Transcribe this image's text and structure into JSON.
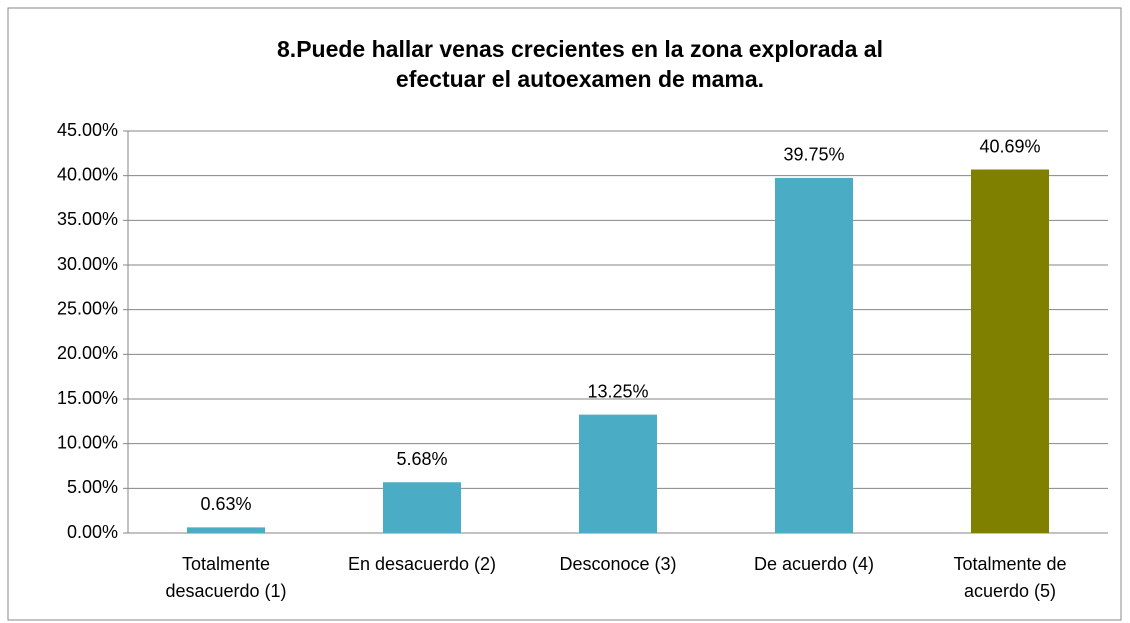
{
  "chart_data": {
    "type": "bar",
    "title": "8.Puede hallar venas crecientes en la zona explorada al efectuar el autoexamen de mama.",
    "categories": [
      "Totalmente desacuerdo (1)",
      "En desacuerdo (2)",
      "Desconoce (3)",
      "De acuerdo (4)",
      "Totalmente de acuerdo (5)"
    ],
    "values": [
      0.63,
      5.68,
      13.25,
      39.75,
      40.69
    ],
    "value_labels": [
      "0.63%",
      "5.68%",
      "13.25%",
      "39.75%",
      "40.69%"
    ],
    "colors": [
      "#4bacc6",
      "#4bacc6",
      "#4bacc6",
      "#4bacc6",
      "#808000"
    ],
    "ylim": [
      0,
      45
    ],
    "yticks": [
      {
        "value": 0,
        "label": "0.00%"
      },
      {
        "value": 5,
        "label": "5.00%"
      },
      {
        "value": 10,
        "label": "10.00%"
      },
      {
        "value": 15,
        "label": "15.00%"
      },
      {
        "value": 20,
        "label": "20.00%"
      },
      {
        "value": 25,
        "label": "25.00%"
      },
      {
        "value": 30,
        "label": "30.00%"
      },
      {
        "value": 35,
        "label": "35.00%"
      },
      {
        "value": 40,
        "label": "40.00%"
      },
      {
        "value": 45,
        "label": "45.00%"
      }
    ],
    "grid": true
  }
}
